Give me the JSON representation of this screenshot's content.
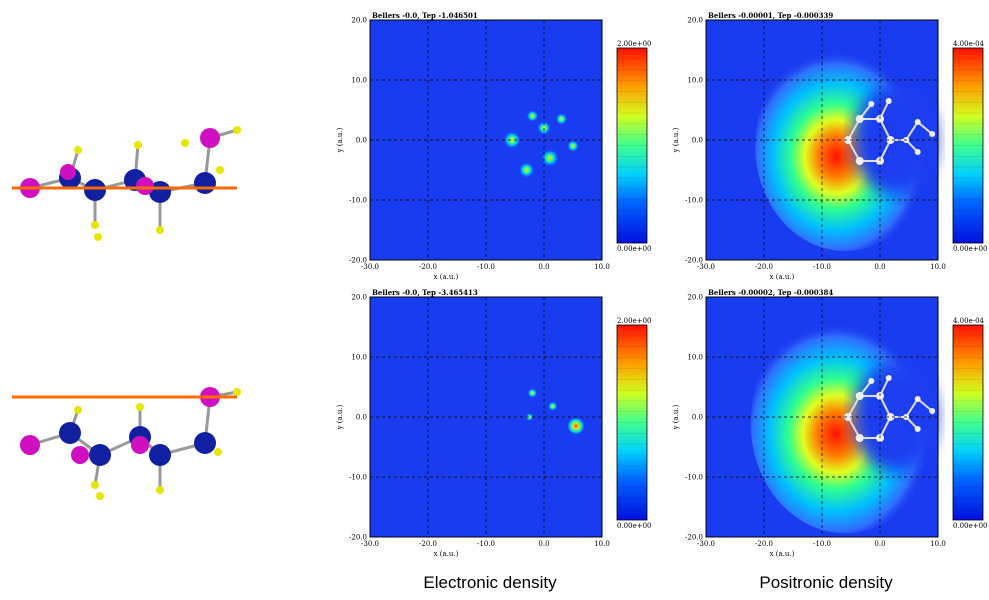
{
  "panels": [
    {
      "title": "Bellers -0.0, Tep -1.046501",
      "xticks": [
        "-30.0",
        "-20.0",
        "-10.0",
        "0.0",
        "10.0"
      ],
      "yticks": [
        "20.0",
        "10.0",
        "0.0",
        "-10.0",
        "-20.0"
      ],
      "xlabel": "x (a.u.)",
      "ylabel": "y (a.u.)",
      "colorbar": [
        "2.00e+00",
        "0.00e+00"
      ]
    },
    {
      "title": "Bellers -0.00001, Tep -0.000339",
      "xticks": [
        "-30.0",
        "-20.0",
        "-10.0",
        "0.0",
        "10.0"
      ],
      "yticks": [
        "20.0",
        "10.0",
        "0.0",
        "-10.0",
        "-20.0"
      ],
      "xlabel": "x (a.u.)",
      "ylabel": "y (a.u.)",
      "colorbar": [
        "4.00e-04",
        "0.00e+00"
      ]
    },
    {
      "title": "Bellers -0.0, Tep -3.465413",
      "xticks": [
        "-30.0",
        "-20.0",
        "-10.0",
        "0.0",
        "10.0"
      ],
      "yticks": [
        "20.0",
        "10.0",
        "0.0",
        "-10.0",
        "-20.0"
      ],
      "xlabel": "x (a.u.)",
      "ylabel": "y (a.u.)",
      "colorbar": [
        "2.00e+00",
        "0.00e+00"
      ]
    },
    {
      "title": "Bellers -0.00002, Tep -0.000384",
      "xticks": [
        "-30.0",
        "-20.0",
        "-10.0",
        "0.0",
        "10.0"
      ],
      "yticks": [
        "20.0",
        "10.0",
        "0.0",
        "-10.0",
        "-20.0"
      ],
      "xlabel": "x (a.u.)",
      "ylabel": "y (a.u.)",
      "colorbar": [
        "4.00e-04",
        "0.00e+00"
      ]
    }
  ],
  "captions": [
    "Electronic density",
    "Positronic density"
  ]
}
